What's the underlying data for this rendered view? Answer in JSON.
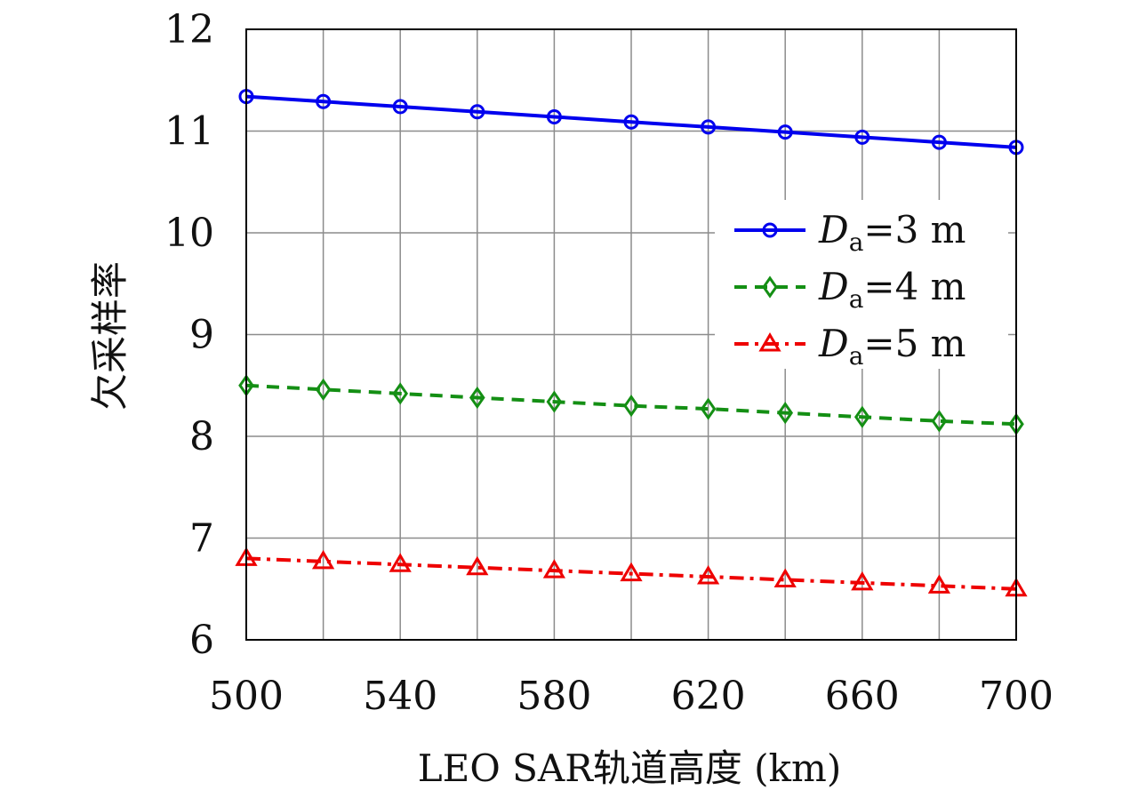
{
  "chart_data": {
    "type": "line",
    "xlabel": "LEO SAR轨道高度 (km)",
    "ylabel": "欠采样率",
    "xlim": [
      500,
      700
    ],
    "ylim": [
      6,
      12
    ],
    "x_ticks": [
      500,
      540,
      580,
      620,
      660,
      700
    ],
    "y_ticks": [
      6,
      7,
      8,
      9,
      10,
      11,
      12
    ],
    "grid": true,
    "legend_position": "right",
    "x": [
      500,
      520,
      540,
      560,
      580,
      600,
      620,
      640,
      660,
      680,
      700
    ],
    "series": [
      {
        "name": "Da=3 m",
        "legend": {
          "symbol": "D",
          "subscript": "a",
          "value": "=3 m"
        },
        "color": "#0000ee",
        "line_style": "solid",
        "marker": "circle",
        "values": [
          11.34,
          11.29,
          11.24,
          11.19,
          11.14,
          11.09,
          11.04,
          10.99,
          10.94,
          10.89,
          10.84
        ]
      },
      {
        "name": "Da=4 m",
        "legend": {
          "symbol": "D",
          "subscript": "a",
          "value": "=4 m"
        },
        "color": "#148f14",
        "line_style": "dashed",
        "marker": "diamond",
        "values": [
          8.5,
          8.46,
          8.42,
          8.38,
          8.34,
          8.3,
          8.27,
          8.23,
          8.19,
          8.15,
          8.12
        ]
      },
      {
        "name": "Da=5 m",
        "legend": {
          "symbol": "D",
          "subscript": "a",
          "value": "=5 m"
        },
        "color": "#ee0000",
        "line_style": "dashdot",
        "marker": "triangle",
        "values": [
          6.8,
          6.77,
          6.74,
          6.71,
          6.68,
          6.65,
          6.62,
          6.59,
          6.56,
          6.53,
          6.5
        ]
      }
    ]
  }
}
